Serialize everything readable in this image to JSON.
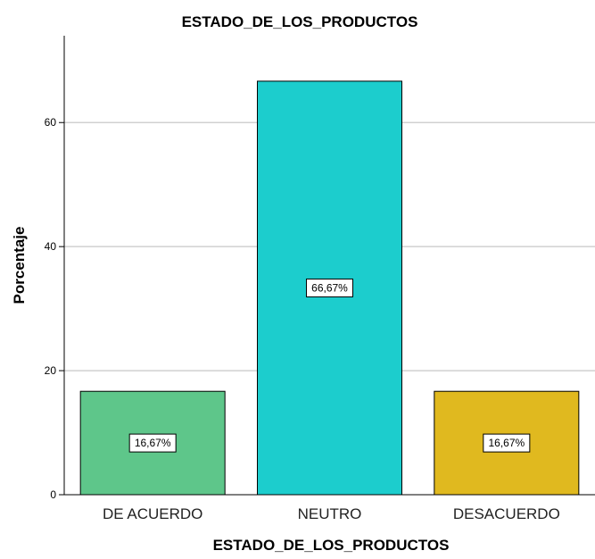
{
  "chart_data": {
    "type": "bar",
    "title": "ESTADO_DE_LOS_PRODUCTOS",
    "xlabel": "ESTADO_DE_LOS_PRODUCTOS",
    "ylabel": "Porcentaje",
    "categories": [
      "DE ACUERDO",
      "NEUTRO",
      "DESACUERDO"
    ],
    "values": [
      16.67,
      66.67,
      16.67
    ],
    "data_labels": [
      "16,67%",
      "66,67%",
      "16,67%"
    ],
    "colors": [
      "#5ec68a",
      "#1ccdcd",
      "#e0b91f"
    ],
    "y_ticks": [
      0,
      20,
      40,
      60
    ],
    "ylim": [
      0,
      74
    ],
    "grid": "horizontal",
    "legend": "none"
  }
}
